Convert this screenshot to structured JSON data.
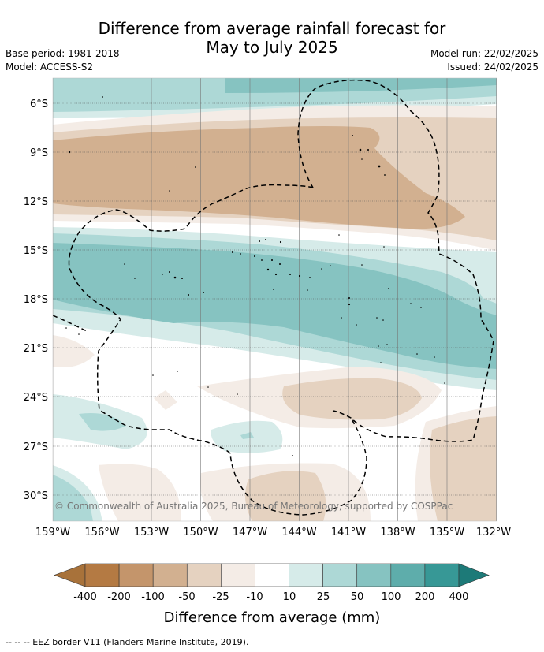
{
  "header": {
    "title_line1": "Difference from average rainfall forecast for",
    "title_line2": "May to July 2025",
    "base_period": "Base period: 1981-2018",
    "model": "Model: ACCESS-S2",
    "model_run": "Model run: 22/02/2025",
    "issued": "Issued: 24/02/2025"
  },
  "map": {
    "lat_labels": [
      "6°S",
      "9°S",
      "12°S",
      "15°S",
      "18°S",
      "21°S",
      "24°S",
      "27°S",
      "30°S"
    ],
    "lon_labels": [
      "159°W",
      "156°W",
      "153°W",
      "150°W",
      "147°W",
      "144°W",
      "141°W",
      "138°W",
      "135°W",
      "132°W"
    ],
    "copyright": "© Commonwealth of Australia 2025, Bureau of Meteorology, supported by COSPPac"
  },
  "colorbar": {
    "ticks": [
      "-400",
      "-200",
      "-100",
      "-50",
      "-25",
      "-10",
      "10",
      "25",
      "50",
      "100",
      "200",
      "400"
    ],
    "colors": [
      "#a8723a",
      "#b47a43",
      "#c4956b",
      "#d2b090",
      "#e5d2c0",
      "#f4ece6",
      "#ffffff",
      "#d6ebe9",
      "#add8d6",
      "#86c3c1",
      "#5eadab",
      "#379896",
      "#1d7a78"
    ],
    "label": "Difference from average (mm)"
  },
  "footer": {
    "legend_text": "--  --  -- EEZ border V11 (Flanders Marine Institute, 2019)."
  }
}
